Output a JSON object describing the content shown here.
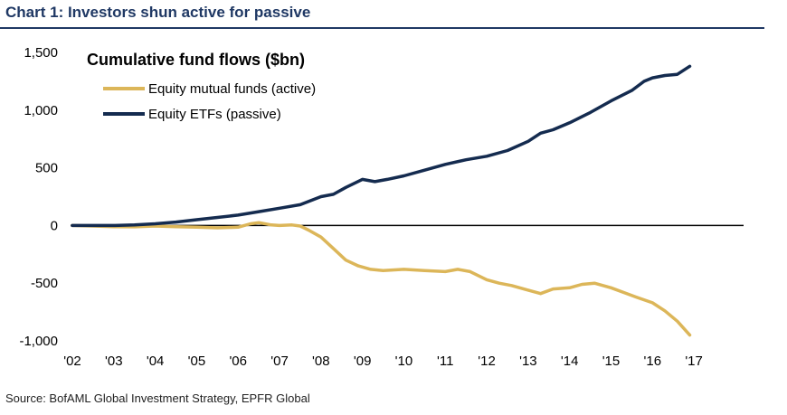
{
  "header": {
    "title": "Chart 1: Investors shun active for passive"
  },
  "source": "Source: BofAML Global Investment Strategy, EPFR Global",
  "chart_data": {
    "type": "line",
    "title": "Cumulative fund flows ($bn)",
    "xlabel": "",
    "ylabel": "",
    "ylim": [
      -1000,
      1500
    ],
    "xlim": [
      2002,
      2017.5
    ],
    "y_ticks": [
      1500,
      1000,
      500,
      0,
      -500,
      -1000
    ],
    "y_tick_labels": [
      "1,500",
      "1,000",
      "500",
      "0",
      "-500",
      "-1,000"
    ],
    "x_ticks": [
      2002,
      2003,
      2004,
      2005,
      2006,
      2007,
      2008,
      2009,
      2010,
      2011,
      2012,
      2013,
      2014,
      2015,
      2016,
      2017
    ],
    "x_tick_labels": [
      "'02",
      "'03",
      "'04",
      "'05",
      "'06",
      "'07",
      "'08",
      "'09",
      "'10",
      "'11",
      "'12",
      "'13",
      "'14",
      "'15",
      "'16",
      "'17"
    ],
    "legend_position": "top-left",
    "series": [
      {
        "name": "Equity mutual funds (active)",
        "color": "#dcb659",
        "x": [
          2002.0,
          2002.5,
          2003.0,
          2003.5,
          2004.0,
          2004.5,
          2005.0,
          2005.5,
          2006.0,
          2006.3,
          2006.5,
          2006.8,
          2007.0,
          2007.3,
          2007.5,
          2007.7,
          2008.0,
          2008.3,
          2008.6,
          2008.9,
          2009.2,
          2009.5,
          2010.0,
          2010.5,
          2011.0,
          2011.3,
          2011.6,
          2012.0,
          2012.3,
          2012.6,
          2013.0,
          2013.3,
          2013.6,
          2014.0,
          2014.3,
          2014.6,
          2015.0,
          2015.3,
          2015.6,
          2016.0,
          2016.3,
          2016.6,
          2016.9
        ],
        "values": [
          0,
          -5,
          -10,
          -12,
          -5,
          -10,
          -15,
          -20,
          -15,
          15,
          25,
          5,
          0,
          5,
          -5,
          -40,
          -100,
          -200,
          -300,
          -350,
          -380,
          -390,
          -380,
          -390,
          -400,
          -380,
          -400,
          -470,
          -500,
          -520,
          -560,
          -590,
          -550,
          -540,
          -510,
          -500,
          -540,
          -580,
          -620,
          -670,
          -740,
          -830,
          -950
        ]
      },
      {
        "name": "Equity ETFs (passive)",
        "color": "#142b4f",
        "x": [
          2002.0,
          2002.5,
          2003.0,
          2003.5,
          2004.0,
          2004.5,
          2005.0,
          2005.5,
          2006.0,
          2006.5,
          2007.0,
          2007.5,
          2008.0,
          2008.3,
          2008.6,
          2009.0,
          2009.3,
          2009.6,
          2010.0,
          2010.5,
          2011.0,
          2011.5,
          2012.0,
          2012.5,
          2013.0,
          2013.3,
          2013.6,
          2014.0,
          2014.5,
          2015.0,
          2015.5,
          2015.8,
          2016.0,
          2016.3,
          2016.6,
          2016.9
        ],
        "values": [
          0,
          0,
          0,
          5,
          15,
          30,
          50,
          70,
          90,
          120,
          150,
          180,
          250,
          270,
          330,
          400,
          380,
          400,
          430,
          480,
          530,
          570,
          600,
          650,
          730,
          800,
          830,
          890,
          980,
          1080,
          1170,
          1250,
          1280,
          1300,
          1310,
          1380
        ]
      }
    ]
  }
}
